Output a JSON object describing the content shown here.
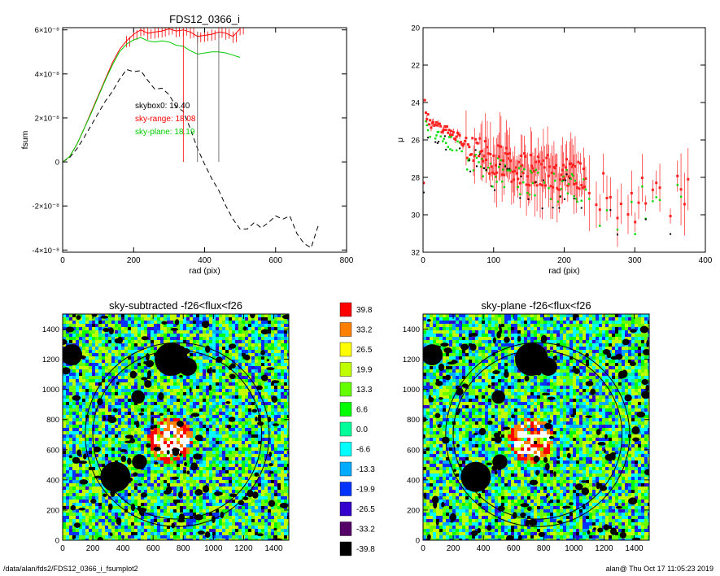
{
  "footer": {
    "path": "/data/alan/fds2/FDS12_0366_i_fsumplot2",
    "stamp": "alan@  Thu Oct 17 11:05:23 2019"
  },
  "chart_data": [
    {
      "id": "fsum",
      "type": "line",
      "title": "FDS12_0366_i",
      "xlabel": "rad (pix)",
      "ylabel": "fsum",
      "xlim": [
        0,
        800
      ],
      "ylim": [
        -4.1e-08,
        6.1e-08
      ],
      "xticks": [
        0,
        200,
        400,
        600,
        800
      ],
      "yticks": [
        {
          "v": 6e-08,
          "label": "6×10⁻⁸"
        },
        {
          "v": 4e-08,
          "label": "4×10⁻⁸"
        },
        {
          "v": 2e-08,
          "label": "2×10⁻⁸"
        },
        {
          "v": 0,
          "label": "0"
        },
        {
          "v": -2e-08,
          "label": "-2×10⁻⁸"
        },
        {
          "v": -4e-08,
          "label": "-4×10⁻⁸"
        }
      ],
      "annotations": [
        {
          "text": "skybox0: 19.40",
          "color": "#000000"
        },
        {
          "text": "sky-range: 18.08",
          "color": "#ff0000"
        },
        {
          "text": "sky-plane: 18.19",
          "color": "#00cc00"
        }
      ],
      "vlines": [
        340,
        380,
        440
      ],
      "series": [
        {
          "color": "#000000",
          "style": "dashed",
          "x": [
            0,
            20,
            40,
            60,
            80,
            100,
            120,
            140,
            160,
            180,
            200,
            220,
            240,
            260,
            280,
            300,
            320,
            340,
            360,
            380,
            400,
            420,
            440,
            460,
            480,
            500,
            520,
            540,
            560,
            580,
            600,
            620,
            640,
            660,
            680,
            700,
            720
          ],
          "y": [
            0,
            2e-09,
            6e-09,
            1.1e-08,
            1.65e-08,
            2.2e-08,
            2.75e-08,
            3.2e-08,
            3.75e-08,
            4.2e-08,
            4.1e-08,
            4.15e-08,
            3.7e-08,
            3.3e-08,
            3.35e-08,
            3.05e-08,
            2.5e-08,
            2.3e-08,
            1.5e-08,
            6e-09,
            -1e-09,
            -7.5e-09,
            -1.3e-08,
            -2e-08,
            -2.6e-08,
            -3.05e-08,
            -3.05e-08,
            -2.75e-08,
            -3e-08,
            -2.75e-08,
            -2.45e-08,
            -2.6e-08,
            -2.45e-08,
            -3.25e-08,
            -3.7e-08,
            -3.9e-08,
            -2.9e-08
          ]
        },
        {
          "color": "#ff0000",
          "style": "solid",
          "x": [
            0,
            20,
            40,
            60,
            80,
            100,
            120,
            140,
            160,
            180,
            200,
            220,
            240,
            260,
            280,
            300,
            320,
            340,
            360,
            380,
            400,
            420,
            440,
            460,
            480,
            500
          ],
          "y": [
            0,
            2.5e-09,
            8e-09,
            1.5e-08,
            2.25e-08,
            3e-08,
            3.75e-08,
            4.5e-08,
            5.1e-08,
            5.5e-08,
            5.8e-08,
            6e-08,
            5.85e-08,
            5.9e-08,
            5.95e-08,
            6.05e-08,
            5.95e-08,
            6e-08,
            5.9e-08,
            5.7e-08,
            5.75e-08,
            5.8e-08,
            5.9e-08,
            5.85e-08,
            5.7e-08,
            6.05e-08
          ]
        },
        {
          "color": "#00cc00",
          "style": "solid",
          "x": [
            0,
            20,
            40,
            60,
            80,
            100,
            120,
            140,
            160,
            180,
            200,
            220,
            240,
            260,
            280,
            300,
            320,
            340,
            360,
            380,
            400,
            420,
            440,
            460,
            480,
            500
          ],
          "y": [
            0,
            2.5e-09,
            8e-09,
            1.5e-08,
            2.2e-08,
            2.95e-08,
            3.7e-08,
            4.4e-08,
            5e-08,
            5.35e-08,
            5.55e-08,
            5.65e-08,
            5.5e-08,
            5.45e-08,
            5.5e-08,
            5.45e-08,
            5.3e-08,
            5.25e-08,
            5.05e-08,
            4.9e-08,
            4.95e-08,
            5e-08,
            5e-08,
            4.95e-08,
            4.85e-08,
            4.75e-08
          ]
        }
      ]
    },
    {
      "id": "mu",
      "type": "scatter",
      "xlabel": "rad (pix)",
      "ylabel": "μ",
      "xlim": [
        0,
        400
      ],
      "ylim": [
        32,
        20
      ],
      "xticks": [
        0,
        100,
        200,
        300,
        400
      ],
      "yticks": [
        20,
        22,
        24,
        26,
        28,
        30,
        32
      ],
      "profile_points": [
        [
          2,
          24.0
        ],
        [
          5,
          24.6
        ],
        [
          10,
          25.1
        ],
        [
          20,
          25.3
        ],
        [
          40,
          25.6
        ],
        [
          60,
          26.2
        ],
        [
          80,
          26.7
        ],
        [
          100,
          27.0
        ],
        [
          120,
          27.3
        ],
        [
          150,
          27.6
        ],
        [
          180,
          27.7
        ],
        [
          200,
          27.9
        ],
        [
          220,
          28.0
        ],
        [
          250,
          28.6
        ],
        [
          280,
          28.9
        ],
        [
          300,
          29.3
        ],
        [
          320,
          29.1
        ],
        [
          350,
          28.8
        ],
        [
          380,
          28.9
        ],
        [
          390,
          28.5
        ]
      ],
      "colors": {
        "range": "#ff2020",
        "plane": "#00dd00",
        "box": "#000000"
      }
    },
    {
      "id": "img1",
      "type": "heatmap",
      "title": "sky-subtracted -f26<flux<f26",
      "xlim": [
        0,
        1500
      ],
      "ylim": [
        0,
        1500
      ],
      "xticks": [
        0,
        200,
        400,
        600,
        800,
        1000,
        1200,
        1400
      ],
      "yticks": [
        0,
        200,
        400,
        600,
        800,
        1000,
        1200,
        1400
      ],
      "ellipses": [
        {
          "cx": 760,
          "cy": 700,
          "rx": 560,
          "ry": 560
        },
        {
          "cx": 760,
          "cy": 700,
          "rx": 610,
          "ry": 610
        }
      ],
      "masks": [
        [
          60,
          1230,
          70
        ],
        [
          720,
          1200,
          110
        ],
        [
          830,
          1150,
          60
        ],
        [
          350,
          420,
          100
        ],
        [
          510,
          520,
          50
        ],
        [
          500,
          950,
          45
        ]
      ]
    },
    {
      "id": "img2",
      "type": "heatmap",
      "title": "sky-plane -f26<flux<f26",
      "xlim": [
        0,
        1500
      ],
      "ylim": [
        0,
        1500
      ],
      "xticks": [
        0,
        200,
        400,
        600,
        800,
        1000,
        1200,
        1400
      ],
      "yticks": [
        0,
        200,
        400,
        600,
        800,
        1000,
        1200,
        1400
      ],
      "ellipses": [
        {
          "cx": 760,
          "cy": 700,
          "rx": 560,
          "ry": 560
        },
        {
          "cx": 760,
          "cy": 700,
          "rx": 610,
          "ry": 610
        }
      ],
      "masks": [
        [
          60,
          1230,
          70
        ],
        [
          720,
          1200,
          110
        ],
        [
          830,
          1150,
          60
        ],
        [
          350,
          420,
          100
        ],
        [
          510,
          520,
          50
        ],
        [
          500,
          950,
          45
        ]
      ]
    },
    {
      "id": "colorbar",
      "type": "colorbar",
      "levels": [
        {
          "label": "39.8",
          "color": "#ff0000"
        },
        {
          "label": "33.2",
          "color": "#ff8000"
        },
        {
          "label": "26.5",
          "color": "#ffff00"
        },
        {
          "label": "19.9",
          "color": "#c0ff00"
        },
        {
          "label": "13.3",
          "color": "#66ff00"
        },
        {
          "label": "6.6",
          "color": "#00ff00"
        },
        {
          "label": "0.0",
          "color": "#00ff99"
        },
        {
          "label": "-6.6",
          "color": "#00ffff"
        },
        {
          "label": "-13.3",
          "color": "#00aaff"
        },
        {
          "label": "-19.9",
          "color": "#0033ff"
        },
        {
          "label": "-26.5",
          "color": "#3300cc"
        },
        {
          "label": "-33.2",
          "color": "#550066"
        },
        {
          "label": "-39.8",
          "color": "#000000"
        }
      ]
    }
  ]
}
